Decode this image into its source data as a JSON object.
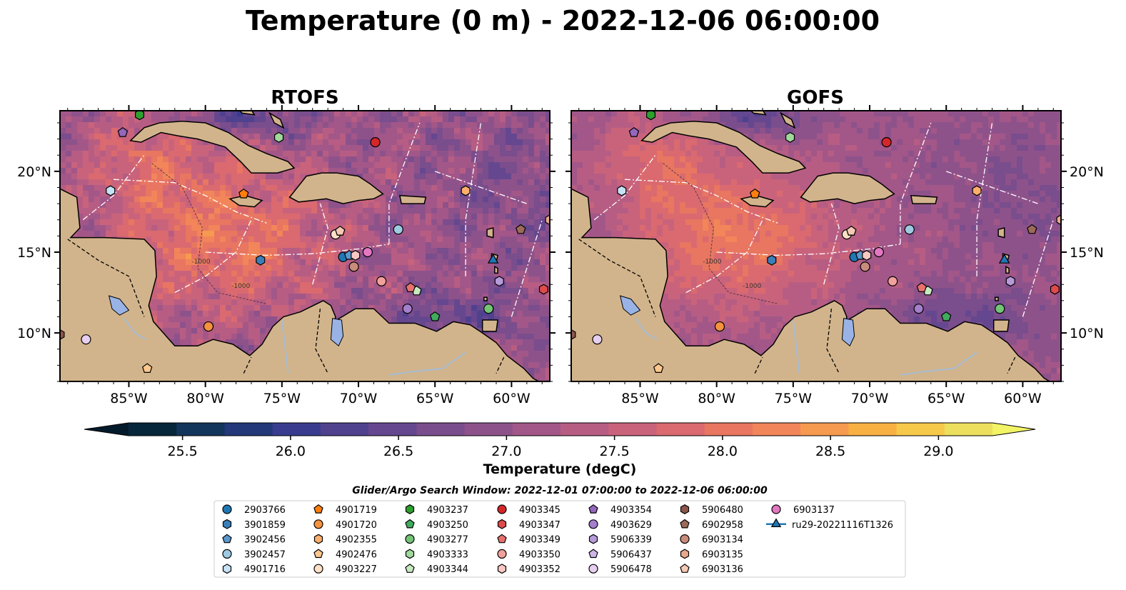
{
  "title": "Temperature (0 m) - 2022-12-06 06:00:00",
  "colors": {
    "land": "#d2b48c",
    "lake": "#99b3e6",
    "river": "#a6bcd2",
    "coast": "#000000"
  },
  "chart_data": [
    {
      "type": "heatmap",
      "title": "RTOFS",
      "xlim": [
        -89.5,
        -57.5
      ],
      "ylim": [
        7.0,
        23.75
      ],
      "xticks": [
        -85,
        -80,
        -75,
        -70,
        -65,
        -60
      ],
      "xtick_labels": [
        "85°W",
        "80°W",
        "75°W",
        "70°W",
        "65°W",
        "60°W"
      ],
      "yticks": [
        10,
        15,
        20
      ],
      "ytick_labels": [
        "10°N",
        "15°N",
        "20°N"
      ],
      "contour_label": "-1000",
      "value_range": [
        25.25,
        29.25
      ]
    },
    {
      "type": "heatmap",
      "title": "GOFS",
      "xlim": [
        -89.5,
        -57.5
      ],
      "ylim": [
        7.0,
        23.75
      ],
      "xticks": [
        -85,
        -80,
        -75,
        -70,
        -65,
        -60
      ],
      "xtick_labels": [
        "85°W",
        "80°W",
        "75°W",
        "70°W",
        "65°W",
        "60°W"
      ],
      "yticks": [
        10,
        15,
        20
      ],
      "ytick_labels": [
        "10°N",
        "15°N",
        "20°N"
      ],
      "contour_label": "-1000",
      "value_range": [
        25.25,
        29.25
      ]
    }
  ],
  "colorbar": {
    "label": "Temperature (degC)",
    "min": 25.25,
    "max": 29.25,
    "step": 0.25,
    "ticks": [
      25.5,
      26.0,
      26.5,
      27.0,
      27.5,
      28.0,
      28.5,
      29.0
    ],
    "tick_labels": [
      "25.5",
      "26.0",
      "26.5",
      "27.0",
      "27.5",
      "28.0",
      "28.5",
      "29.0"
    ],
    "colors": [
      "#06263a",
      "#13345b",
      "#223879",
      "#393c8e",
      "#50418f",
      "#65478f",
      "#7a4d8d",
      "#8e528b",
      "#a25788",
      "#b75d83",
      "#c9637c",
      "#da6a6f",
      "#e87661",
      "#f2855a",
      "#f69a4f",
      "#f8b043",
      "#f6c94b",
      "#ecdf5e"
    ],
    "extend_min_color": "#031a2a",
    "extend_max_color": "#f2f466"
  },
  "search_window": "Glider/Argo Search Window: 2022-12-01 07:00:00 to 2022-12-06 06:00:00",
  "floats": [
    {
      "id": "2903766",
      "marker": "circle",
      "color": "#1f77b4",
      "lon": -71.0,
      "lat": 14.7
    },
    {
      "id": "3901859",
      "marker": "hexagon",
      "color": "#3a7fb8",
      "lon": -76.4,
      "lat": 14.5
    },
    {
      "id": "3902456",
      "marker": "pentagon",
      "color": "#5a98cc",
      "lon": -70.6,
      "lat": 14.8
    },
    {
      "id": "3902457",
      "marker": "circle",
      "color": "#9ecae1",
      "lon": -67.4,
      "lat": 16.4
    },
    {
      "id": "4901716",
      "marker": "hexagon",
      "color": "#c6e2f5",
      "lon": -86.2,
      "lat": 18.8
    },
    {
      "id": "4901719",
      "marker": "pentagon",
      "color": "#ff7f0e",
      "lon": -77.5,
      "lat": 18.6
    },
    {
      "id": "4901720",
      "marker": "circle",
      "color": "#f5923e",
      "lon": -79.8,
      "lat": 10.4
    },
    {
      "id": "4902355",
      "marker": "hexagon",
      "color": "#fdae6b",
      "lon": -63.0,
      "lat": 18.8
    },
    {
      "id": "4902476",
      "marker": "pentagon",
      "color": "#fdc78e",
      "lon": -83.8,
      "lat": 7.8
    },
    {
      "id": "4903227",
      "marker": "circle",
      "color": "#fde0c5",
      "lon": -71.5,
      "lat": 16.1
    },
    {
      "id": "4903237",
      "marker": "hexagon",
      "color": "#2ca02c",
      "lon": -84.3,
      "lat": 23.5
    },
    {
      "id": "4903250",
      "marker": "pentagon",
      "color": "#41ab5d",
      "lon": -65.0,
      "lat": 11.0
    },
    {
      "id": "4903277",
      "marker": "circle",
      "color": "#74c476",
      "lon": -61.5,
      "lat": 11.5
    },
    {
      "id": "4903333",
      "marker": "hexagon",
      "color": "#a1d99b",
      "lon": -75.2,
      "lat": 22.1
    },
    {
      "id": "4903344",
      "marker": "pentagon",
      "color": "#c7e9c0",
      "lon": -66.2,
      "lat": 12.6
    },
    {
      "id": "4903345",
      "marker": "circle",
      "color": "#d62728",
      "lon": -68.9,
      "lat": 21.8
    },
    {
      "id": "4903347",
      "marker": "hexagon",
      "color": "#de4b4b",
      "lon": -57.9,
      "lat": 12.7
    },
    {
      "id": "4903349",
      "marker": "pentagon",
      "color": "#e8716e",
      "lon": -66.6,
      "lat": 12.8
    },
    {
      "id": "4903350",
      "marker": "circle",
      "color": "#f2a09b",
      "lon": -68.5,
      "lat": 13.2
    },
    {
      "id": "4903352",
      "marker": "hexagon",
      "color": "#f9c8c3",
      "lon": -70.2,
      "lat": 14.8
    },
    {
      "id": "4903354",
      "marker": "pentagon",
      "color": "#9467bd",
      "lon": -85.4,
      "lat": 22.4
    },
    {
      "id": "4903629",
      "marker": "circle",
      "color": "#a47fcc",
      "lon": -66.8,
      "lat": 11.5
    },
    {
      "id": "5906339",
      "marker": "hexagon",
      "color": "#b79bd9",
      "lon": -60.8,
      "lat": 13.2
    },
    {
      "id": "5906437",
      "marker": "pentagon",
      "color": "#cdb6e6",
      "lon": -71.2,
      "lat": 16.3
    },
    {
      "id": "5906478",
      "marker": "circle",
      "color": "#e6cfef",
      "lon": -87.8,
      "lat": 9.6
    },
    {
      "id": "5906480",
      "marker": "hexagon",
      "color": "#8c564b",
      "lon": -89.5,
      "lat": 9.9
    },
    {
      "id": "6902958",
      "marker": "pentagon",
      "color": "#9c6b58",
      "lon": -59.4,
      "lat": 16.4
    },
    {
      "id": "6903134",
      "marker": "circle",
      "color": "#c98c7b",
      "lon": -70.3,
      "lat": 14.1
    },
    {
      "id": "6903135",
      "marker": "hexagon",
      "color": "#e8a88d",
      "lon": -57.5,
      "lat": 17.0
    },
    {
      "id": "6903136",
      "marker": "pentagon",
      "color": "#f6c9b4",
      "lon": -71.2,
      "lat": 16.3
    },
    {
      "id": "6903137",
      "marker": "circle",
      "color": "#e377c2",
      "lon": -69.4,
      "lat": 15.0
    },
    {
      "id": "ru29-20221116T1326",
      "marker": "triangle",
      "color": "#1f77b4",
      "lon": -61.2,
      "lat": 14.5
    }
  ]
}
